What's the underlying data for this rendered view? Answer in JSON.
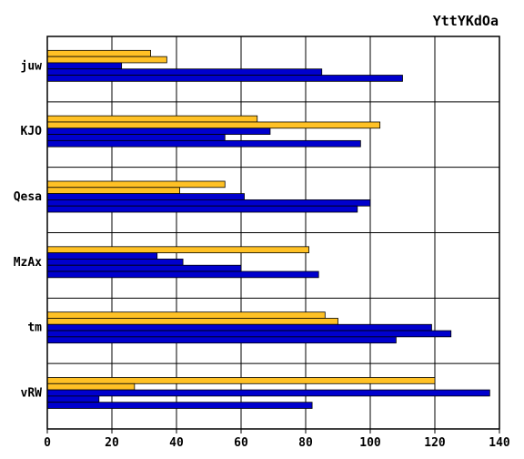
{
  "chart_data": {
    "type": "bar",
    "orientation": "horizontal",
    "title": "YttYKdOa",
    "xlabel": "",
    "ylabel": "",
    "xlim": [
      0,
      140
    ],
    "x_ticks": [
      0,
      20,
      40,
      60,
      80,
      100,
      120,
      140
    ],
    "grid": true,
    "categories": [
      "juw",
      "KJO",
      "Qesa",
      "MzAx",
      "tm",
      "vRW"
    ],
    "bars_per_category": [
      {
        "values": [
          32,
          37,
          23,
          85,
          110
        ],
        "colors": [
          "#FFC125",
          "#FFC125",
          "#0000CD",
          "#0000CD",
          "#0000CD"
        ]
      },
      {
        "values": [
          65,
          103,
          69,
          55,
          97
        ],
        "colors": [
          "#FFC125",
          "#FFC125",
          "#0000CD",
          "#0000CD",
          "#0000CD"
        ]
      },
      {
        "values": [
          55,
          41,
          61,
          100,
          96
        ],
        "colors": [
          "#FFC125",
          "#FFC125",
          "#0000CD",
          "#0000CD",
          "#0000CD"
        ]
      },
      {
        "values": [
          81,
          34,
          42,
          60,
          84
        ],
        "colors": [
          "#FFC125",
          "#0000CD",
          "#0000CD",
          "#0000CD",
          "#0000CD"
        ]
      },
      {
        "values": [
          86,
          90,
          119,
          125,
          108
        ],
        "colors": [
          "#FFC125",
          "#FFC125",
          "#0000CD",
          "#0000CD",
          "#0000CD"
        ]
      },
      {
        "values": [
          120,
          27,
          137,
          16,
          82
        ],
        "colors": [
          "#FFC125",
          "#FFC125",
          "#0000CD",
          "#0000CD",
          "#0000CD"
        ]
      }
    ]
  }
}
